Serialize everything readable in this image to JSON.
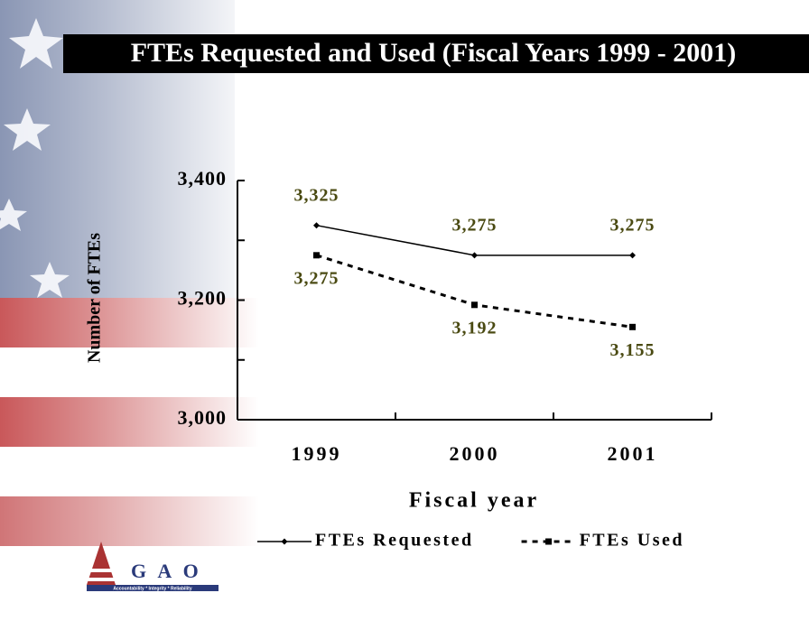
{
  "chart_data": {
    "type": "line",
    "title": "FTEs Requested and Used (Fiscal Years 1999 - 2001)",
    "y_label": "Number of FTEs",
    "x_label": "Fiscal year",
    "categories": [
      "1999",
      "2000",
      "2001"
    ],
    "series": [
      {
        "name": "FTEs Requested",
        "color": "#000000",
        "line_style": "solid",
        "marker": "diamond",
        "values": [
          3325,
          3275,
          3275
        ],
        "value_labels": [
          "3,325",
          "3,275",
          "3,275"
        ]
      },
      {
        "name": "FTEs Used",
        "color": "#000000",
        "line_style": "dashed",
        "marker": "square",
        "values": [
          3275,
          3192,
          3155
        ],
        "value_labels": [
          "3,275",
          "3,192",
          "3,155"
        ]
      }
    ],
    "ylim": [
      3000,
      3400
    ],
    "yticks": [
      {
        "value": 3000,
        "label": "3,000"
      },
      {
        "value": 3200,
        "label": "3,200"
      },
      {
        "value": 3400,
        "label": "3,400"
      }
    ],
    "yminor_ticks": [
      3100,
      3300
    ],
    "legend": "bottom",
    "label_color": "#4a4a12"
  },
  "logo": {
    "name": "G A O",
    "motto": "Accountability * Integrity * Reliability"
  }
}
